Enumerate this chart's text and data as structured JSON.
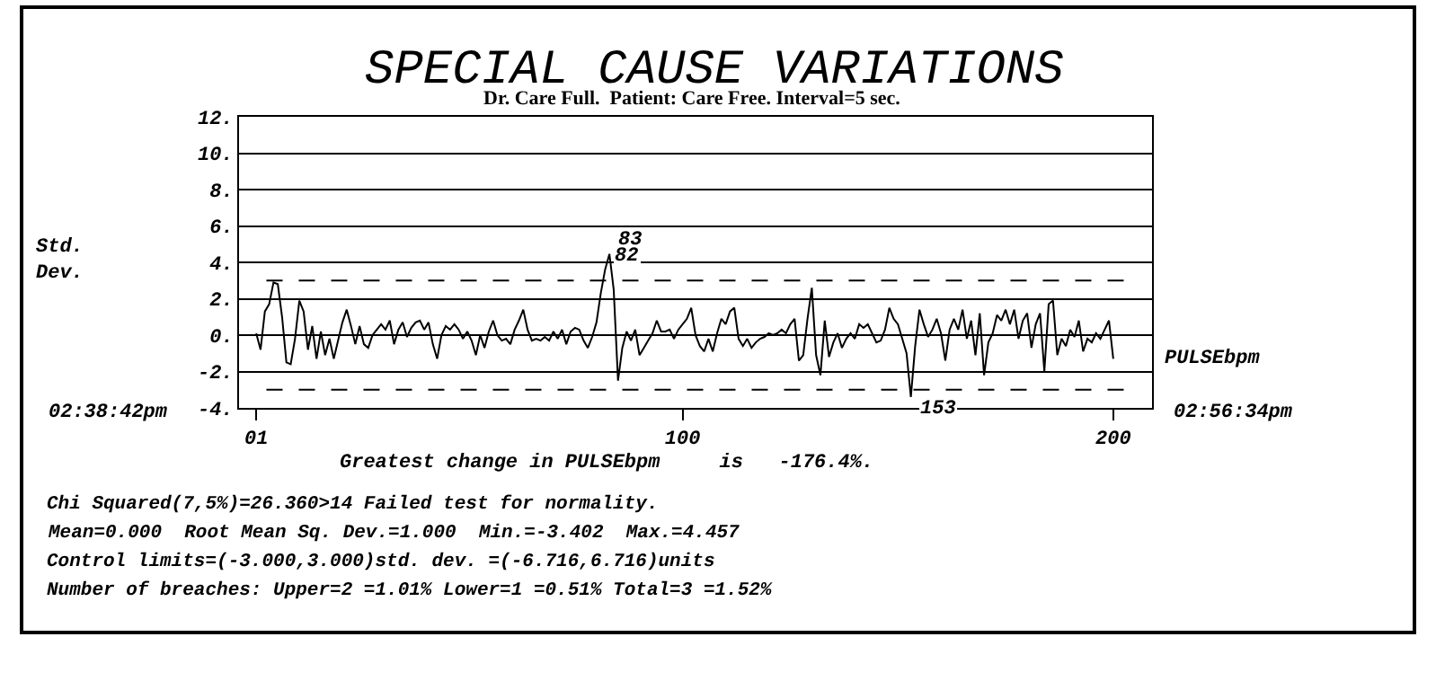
{
  "chart_data": {
    "type": "line",
    "title": "SPECIAL CAUSE VARIATIONS",
    "subtitle": "Dr. Care Full.  Patient: Care Free. Interval=5 sec.",
    "xlabel": "Greatest change in PULSEbpm     is   -176.4%.",
    "x": [
      1,
      2,
      3,
      4,
      5,
      6,
      7,
      8,
      9,
      10,
      11,
      12,
      13,
      14,
      15,
      16,
      17,
      18,
      19,
      20,
      21,
      22,
      23,
      24,
      25,
      26,
      27,
      28,
      29,
      30,
      31,
      32,
      33,
      34,
      35,
      36,
      37,
      38,
      39,
      40,
      41,
      42,
      43,
      44,
      45,
      46,
      47,
      48,
      49,
      50,
      51,
      52,
      53,
      54,
      55,
      56,
      57,
      58,
      59,
      60,
      61,
      62,
      63,
      64,
      65,
      66,
      67,
      68,
      69,
      70,
      71,
      72,
      73,
      74,
      75,
      76,
      77,
      78,
      79,
      80,
      81,
      82,
      83,
      84,
      85,
      86,
      87,
      88,
      89,
      90,
      91,
      92,
      93,
      94,
      95,
      96,
      97,
      98,
      99,
      100,
      101,
      102,
      103,
      104,
      105,
      106,
      107,
      108,
      109,
      110,
      111,
      112,
      113,
      114,
      115,
      116,
      117,
      118,
      119,
      120,
      121,
      122,
      123,
      124,
      125,
      126,
      127,
      128,
      129,
      130,
      131,
      132,
      133,
      134,
      135,
      136,
      137,
      138,
      139,
      140,
      141,
      142,
      143,
      144,
      145,
      146,
      147,
      148,
      149,
      150,
      151,
      152,
      153,
      154,
      155,
      156,
      157,
      158,
      159,
      160,
      161,
      162,
      163,
      164,
      165,
      166,
      167,
      168,
      169,
      170,
      171,
      172,
      173,
      174,
      175,
      176,
      177,
      178,
      179,
      180,
      181,
      182,
      183,
      184,
      185,
      186,
      187,
      188,
      189,
      190,
      191,
      192,
      193,
      194,
      195,
      196,
      197,
      198,
      199,
      200
    ],
    "series": [
      {
        "name": "PULSEbpm",
        "color": "#000000",
        "values": [
          0.1,
          -0.8,
          1.3,
          1.7,
          2.9,
          2.8,
          1.0,
          -1.5,
          -1.6,
          -0.2,
          1.9,
          1.3,
          -0.8,
          0.5,
          -1.3,
          0.2,
          -1.1,
          -0.2,
          -1.3,
          -0.3,
          0.7,
          1.4,
          0.5,
          -0.5,
          0.5,
          -0.5,
          -0.7,
          0,
          0.3,
          0.6,
          0.3,
          0.8,
          -0.5,
          0.3,
          0.7,
          -0.1,
          0.4,
          0.7,
          0.8,
          0.3,
          0.7,
          -0.5,
          -1.3,
          0,
          0.5,
          0.3,
          0.6,
          0.3,
          -0.2,
          0.2,
          -0.3,
          -1.1,
          0,
          -0.7,
          0.2,
          0.8,
          0,
          -0.3,
          -0.2,
          -0.5,
          0.3,
          0.8,
          1.4,
          0.3,
          -0.3,
          -0.2,
          -0.3,
          -0.1,
          -0.3,
          0.2,
          -0.2,
          0.3,
          -0.5,
          0.2,
          0.4,
          0.3,
          -0.3,
          -0.7,
          -0.1,
          0.7,
          2.3,
          3.6,
          4.457,
          2.5,
          -2.5,
          -0.7,
          0.2,
          -0.3,
          0.3,
          -1.1,
          -0.7,
          -0.3,
          0.1,
          0.8,
          0.2,
          0.2,
          0.3,
          -0.2,
          0.3,
          0.6,
          0.9,
          1.5,
          0,
          -0.6,
          -0.9,
          -0.2,
          -0.9,
          0.1,
          0.9,
          0.6,
          1.3,
          1.5,
          -0.2,
          -0.6,
          -0.2,
          -0.7,
          -0.4,
          -0.2,
          -0.1,
          0.1,
          0,
          0.1,
          0.3,
          0.1,
          0.6,
          0.9,
          -1.4,
          -1.1,
          0.9,
          2.6,
          -1.1,
          -2.2,
          0.8,
          -1.2,
          -0.4,
          0.1,
          -0.7,
          -0.2,
          0.1,
          -0.2,
          0.6,
          0.4,
          0.6,
          0.1,
          -0.4,
          -0.3,
          0.3,
          1.5,
          0.9,
          0.6,
          -0.2,
          -1.0,
          -3.402,
          -0.6,
          1.4,
          0.6,
          -0.1,
          0.3,
          0.9,
          0.1,
          -1.4,
          0.3,
          0.9,
          0.3,
          1.4,
          -0.2,
          0.8,
          -1.1,
          1.2,
          -2.2,
          -0.4,
          0.1,
          1.1,
          0.8,
          1.4,
          0.6,
          1.4,
          -0.2,
          0.8,
          1.2,
          -0.7,
          0.6,
          1.2,
          -2.0,
          1.7,
          1.9,
          -1.1,
          -0.2,
          -0.6,
          0.3,
          -0.1,
          0.8,
          -0.9,
          -0.2,
          -0.4,
          0.1,
          -0.2,
          0.3,
          0.8,
          -1.3
        ]
      }
    ],
    "xlim": [
      -3,
      209
    ],
    "xticks": [
      {
        "value": 1,
        "label": "01"
      },
      100,
      200
    ],
    "ylim": [
      -4,
      12
    ],
    "yticks": [
      {
        "value": -4,
        "label": "-4."
      },
      {
        "value": -2,
        "label": "-2."
      },
      {
        "value": 0,
        "label": "0."
      },
      {
        "value": 2,
        "label": "2."
      },
      {
        "value": 4,
        "label": "4."
      },
      {
        "value": 6,
        "label": "6."
      },
      {
        "value": 8,
        "label": "8."
      },
      {
        "value": 10,
        "label": "10."
      },
      {
        "value": 12,
        "label": "12."
      }
    ],
    "grid": "y",
    "legend": false,
    "marker": "none",
    "line_style": "solid",
    "ref_lines": [
      {
        "axis": "y",
        "value": 3,
        "label": null,
        "color": "#000000",
        "line_style": "dashed"
      },
      {
        "axis": "y",
        "value": -3,
        "label": null,
        "color": "#000000",
        "line_style": "dashed"
      }
    ],
    "annotations": [
      {
        "text": "83",
        "x": 83,
        "y": 4.457
      },
      {
        "text": "82",
        "x": 82,
        "y": 3.6
      },
      {
        "text": "153",
        "x": 153,
        "y": -3.402
      },
      "Std.\nDev.",
      "02:38:42pm",
      "02:56:34pm",
      "Chi Squared(7,5%)=26.360>14 Failed test for normality.",
      "Mean=0.000  Root Mean Sq. Dev.=1.000  Min.=-3.402  Max.=4.457",
      "Control limits=(-3.000,3.000)std. dev. =(-6.716,6.716)units",
      "Number of breaches: Upper=2 =1.01% Lower=1 =0.51% Total=3 =1.52%"
    ]
  }
}
